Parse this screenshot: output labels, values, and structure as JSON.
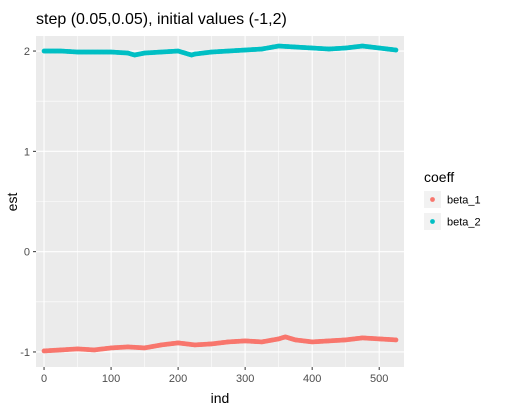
{
  "chart_data": {
    "type": "scatter",
    "title": "step (0.05,0.05), initial values (-1,2)",
    "xlabel": "ind",
    "ylabel": "est",
    "xlim": [
      -12,
      537
    ],
    "ylim": [
      -1.15,
      2.15
    ],
    "x_ticks": [
      0,
      100,
      200,
      300,
      400,
      500
    ],
    "x_tick_labels": [
      "0",
      "100",
      "200",
      "300",
      "400",
      "500"
    ],
    "y_ticks": [
      -1,
      0,
      1,
      2
    ],
    "y_tick_labels": [
      "-1",
      "0",
      "1",
      "2"
    ],
    "grid": true,
    "background": "#ebebeb",
    "legend": {
      "title": "coeff",
      "position": "right"
    },
    "series": [
      {
        "name": "beta_1",
        "color": "#f8766d",
        "x": [
          0,
          25,
          50,
          75,
          100,
          125,
          150,
          175,
          200,
          225,
          250,
          275,
          300,
          325,
          350,
          360,
          375,
          400,
          425,
          450,
          475,
          500,
          525
        ],
        "y": [
          -0.99,
          -0.98,
          -0.97,
          -0.98,
          -0.96,
          -0.95,
          -0.96,
          -0.93,
          -0.91,
          -0.93,
          -0.92,
          -0.9,
          -0.89,
          -0.9,
          -0.87,
          -0.85,
          -0.88,
          -0.9,
          -0.89,
          -0.88,
          -0.86,
          -0.87,
          -0.88
        ]
      },
      {
        "name": "beta_2",
        "color": "#00bfc4",
        "x": [
          0,
          25,
          50,
          75,
          100,
          125,
          135,
          150,
          175,
          200,
          220,
          225,
          250,
          275,
          300,
          325,
          350,
          375,
          400,
          425,
          450,
          475,
          500,
          525
        ],
        "y": [
          2.0,
          2.0,
          1.99,
          1.99,
          1.99,
          1.98,
          1.96,
          1.98,
          1.99,
          2.0,
          1.96,
          1.97,
          1.99,
          2.0,
          2.01,
          2.02,
          2.05,
          2.04,
          2.03,
          2.02,
          2.03,
          2.05,
          2.03,
          2.01
        ]
      }
    ]
  }
}
